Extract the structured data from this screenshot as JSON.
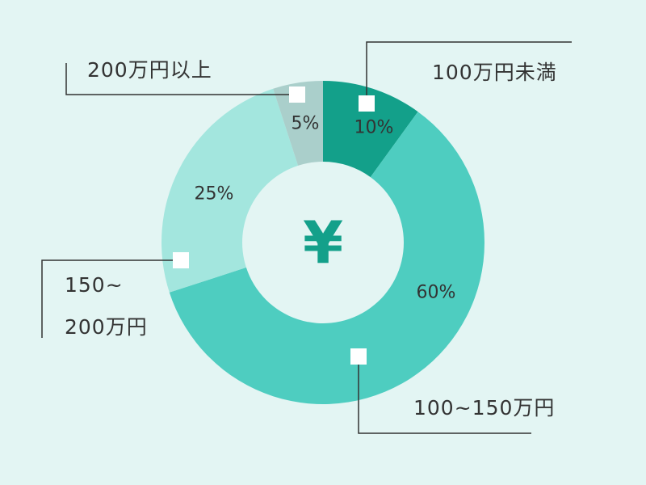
{
  "chart_data": {
    "type": "pie",
    "donut": true,
    "center_symbol": "¥",
    "slices": [
      {
        "label": "100万円未満",
        "value": 10,
        "display": "10%",
        "color": "#13a08a"
      },
      {
        "label": "100~150万円",
        "value": 60,
        "display": "60%",
        "color": "#4ecdc0"
      },
      {
        "label_line1": "150~",
        "label_line2": "200万円",
        "value": 25,
        "display": "25%",
        "color": "#a3e6de"
      },
      {
        "label": "200万円以上",
        "value": 5,
        "display": "5%",
        "color": "#aacfcb"
      }
    ],
    "start": "top",
    "direction": "clockwise",
    "background": "#e3f5f3"
  }
}
